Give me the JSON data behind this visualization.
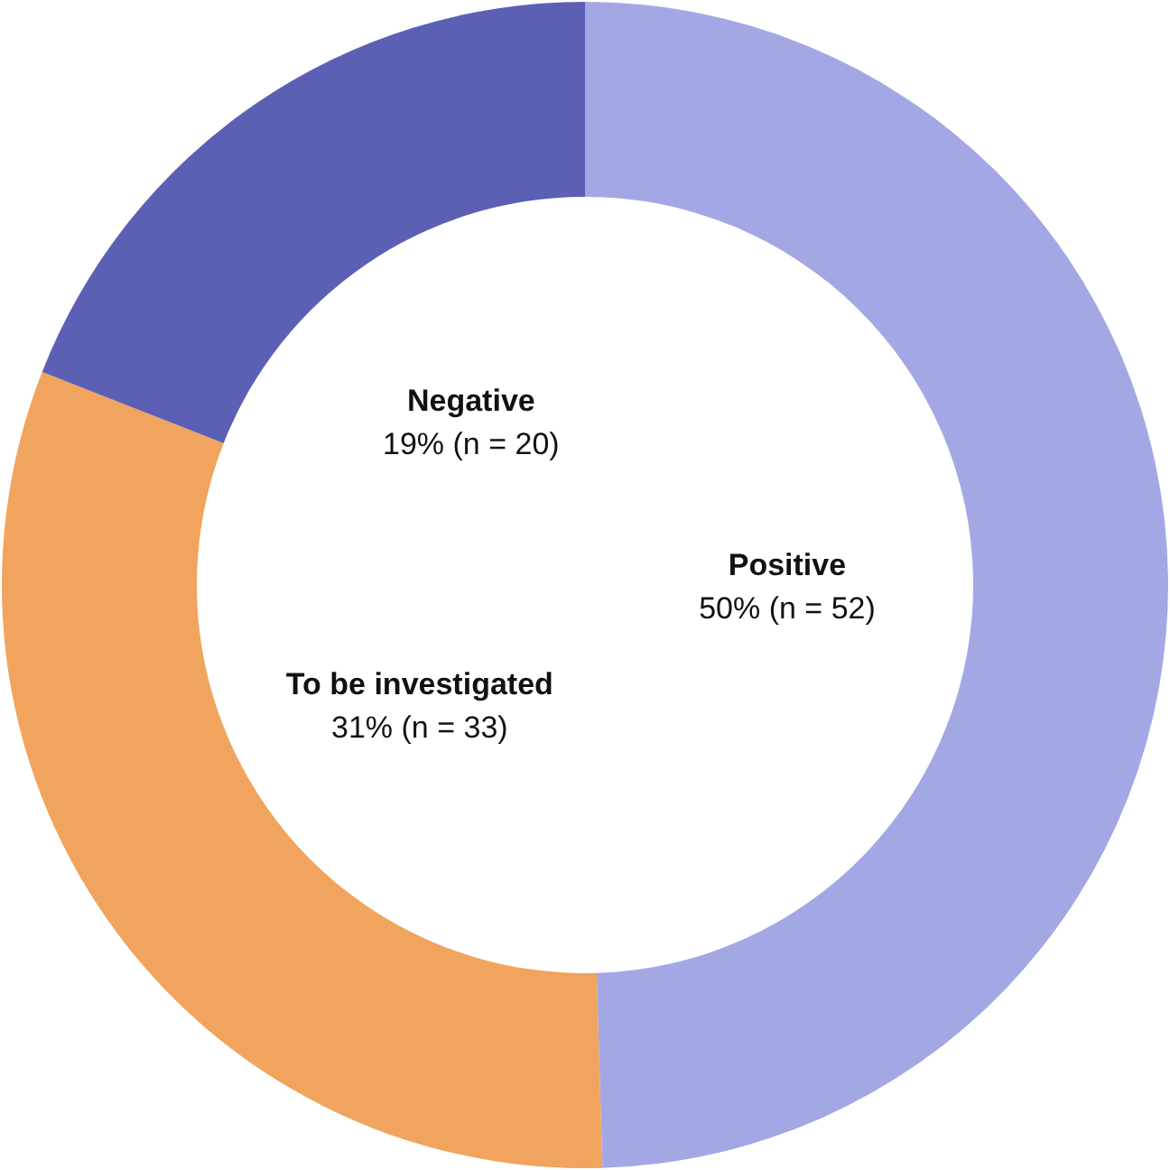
{
  "chart_data": {
    "type": "donut",
    "categories": [
      "Positive",
      "To be investigated",
      "Negative"
    ],
    "values": [
      52,
      33,
      20
    ],
    "colors": [
      "#a3a8e4",
      "#f0a45e",
      "#5c60b5"
    ],
    "value_labels": [
      "50% (n = 52)",
      "31% (n = 33)",
      "19% (n = 20)"
    ]
  }
}
